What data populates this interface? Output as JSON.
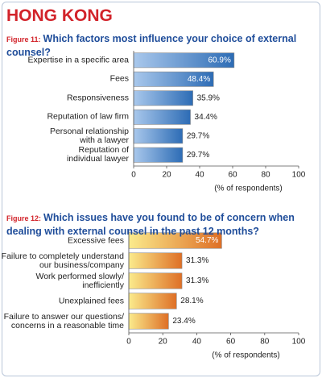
{
  "header": {
    "title": "HONG KONG"
  },
  "chart_data": [
    {
      "type": "bar",
      "figure": "Figure 11:",
      "title": "Which factors most influence your choice of external counsel?",
      "categories": [
        "Expertise in a specific area",
        "Fees",
        "Responsiveness",
        "Reputation of law firm",
        "Personal relationship\nwith a lawyer",
        "Reputation of\nindividual lawyer"
      ],
      "values": [
        60.9,
        48.4,
        35.9,
        34.4,
        29.7,
        29.7
      ],
      "value_labels": [
        "60.9%",
        "48.4%",
        "35.9%",
        "34.4%",
        "29.7%",
        "29.7%"
      ],
      "color": "#2d6cb5",
      "xlim": [
        0,
        100
      ],
      "xticks": [
        0,
        20,
        40,
        60,
        80,
        100
      ],
      "x_label": "(% of respondents)"
    },
    {
      "type": "bar",
      "figure": "Figure 12:",
      "title": "Which issues have you found to be of concern when dealing with external counsel in the past 12 months?",
      "categories": [
        "Excessive fees",
        "Failure to completely understand\nour business/company",
        "Work performed slowly/\ninefficiently",
        "Unexplained fees",
        "Failure to answer our questions/\nconcerns in a reasonable time"
      ],
      "values": [
        54.7,
        31.3,
        31.3,
        28.1,
        23.4
      ],
      "value_labels": [
        "54.7%",
        "31.3%",
        "31.3%",
        "28.1%",
        "23.4%"
      ],
      "color": "#de6f26",
      "xlim": [
        0,
        100
      ],
      "xticks": [
        0,
        20,
        40,
        60,
        80,
        100
      ],
      "x_label": "(% of respondents)"
    }
  ]
}
